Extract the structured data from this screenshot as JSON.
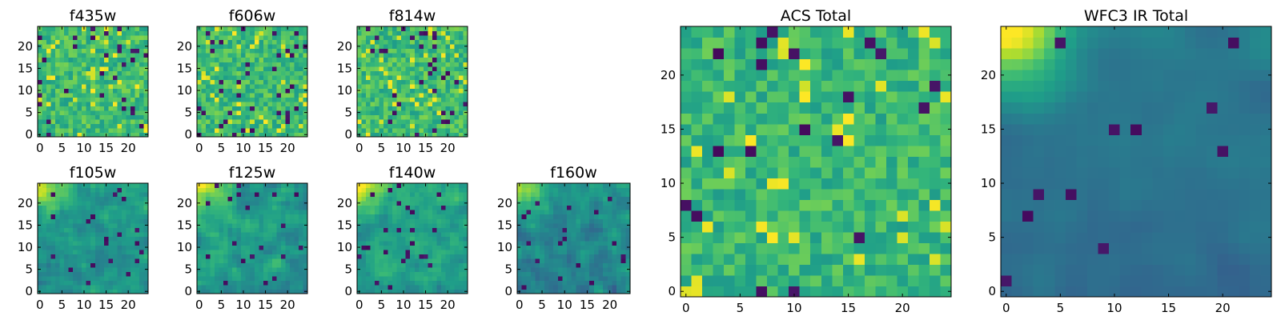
{
  "chart_data": [
    {
      "type": "heatmap",
      "title": "f435w",
      "grid_size": 25,
      "seed": 11,
      "smooth": 0,
      "gradient": 0.0,
      "base": 0.68,
      "spread": 0.13,
      "dark_fraction": 0.05,
      "bright_fraction": 0.06,
      "xticks": [
        0,
        5,
        10,
        15,
        20
      ],
      "yticks": [
        0,
        5,
        10,
        15,
        20
      ],
      "xlim": [
        -0.5,
        24.5
      ],
      "ylim": [
        -0.5,
        24.5
      ]
    },
    {
      "type": "heatmap",
      "title": "f606w",
      "grid_size": 25,
      "seed": 23,
      "smooth": 0,
      "gradient": 0.0,
      "base": 0.68,
      "spread": 0.13,
      "dark_fraction": 0.05,
      "bright_fraction": 0.06,
      "xticks": [
        0,
        5,
        10,
        15,
        20
      ],
      "yticks": [
        0,
        5,
        10,
        15,
        20
      ],
      "xlim": [
        -0.5,
        24.5
      ],
      "ylim": [
        -0.5,
        24.5
      ]
    },
    {
      "type": "heatmap",
      "title": "f814w",
      "grid_size": 25,
      "seed": 37,
      "smooth": 0,
      "gradient": 0.0,
      "base": 0.68,
      "spread": 0.13,
      "dark_fraction": 0.05,
      "bright_fraction": 0.06,
      "xticks": [
        0,
        5,
        10,
        15,
        20
      ],
      "yticks": [
        0,
        5,
        10,
        15,
        20
      ],
      "xlim": [
        -0.5,
        24.5
      ],
      "ylim": [
        -0.5,
        24.5
      ]
    },
    {
      "type": "heatmap",
      "title": "f105w",
      "grid_size": 25,
      "seed": 41,
      "smooth": 1,
      "gradient": 0.3,
      "base": 0.55,
      "spread": 0.11,
      "dark_fraction": 0.03,
      "bright_fraction": 0.0,
      "xticks": [
        0,
        5,
        10,
        15,
        20
      ],
      "yticks": [
        0,
        5,
        10,
        15,
        20
      ],
      "xlim": [
        -0.5,
        24.5
      ],
      "ylim": [
        -0.5,
        24.5
      ]
    },
    {
      "type": "heatmap",
      "title": "f125w",
      "grid_size": 25,
      "seed": 53,
      "smooth": 1,
      "gradient": 0.3,
      "base": 0.57,
      "spread": 0.12,
      "dark_fraction": 0.04,
      "bright_fraction": 0.0,
      "xticks": [
        0,
        5,
        10,
        15,
        20
      ],
      "yticks": [
        0,
        5,
        10,
        15,
        20
      ],
      "xlim": [
        -0.5,
        24.5
      ],
      "ylim": [
        -0.5,
        24.5
      ]
    },
    {
      "type": "heatmap",
      "title": "f140w",
      "grid_size": 25,
      "seed": 67,
      "smooth": 1,
      "gradient": 0.28,
      "base": 0.6,
      "spread": 0.11,
      "dark_fraction": 0.03,
      "bright_fraction": 0.0,
      "xticks": [
        0,
        5,
        10,
        15,
        20
      ],
      "yticks": [
        0,
        5,
        10,
        15,
        20
      ],
      "xlim": [
        -0.5,
        24.5
      ],
      "ylim": [
        -0.5,
        24.5
      ]
    },
    {
      "type": "heatmap",
      "title": "f160w",
      "grid_size": 25,
      "seed": 79,
      "smooth": 1,
      "gradient": 0.3,
      "base": 0.5,
      "spread": 0.12,
      "dark_fraction": 0.04,
      "bright_fraction": 0.0,
      "xticks": [
        0,
        5,
        10,
        15,
        20
      ],
      "yticks": [
        0,
        5,
        10,
        15,
        20
      ],
      "xlim": [
        -0.5,
        24.5
      ],
      "ylim": [
        -0.5,
        24.5
      ]
    },
    {
      "type": "heatmap",
      "title": "ACS Total",
      "grid_size": 25,
      "seed": 97,
      "smooth": 0,
      "gradient": 0.0,
      "base": 0.66,
      "spread": 0.12,
      "dark_fraction": 0.035,
      "bright_fraction": 0.05,
      "xticks": [
        0,
        5,
        10,
        15,
        20
      ],
      "yticks": [
        0,
        5,
        10,
        15,
        20
      ],
      "xlim": [
        -0.5,
        24.5
      ],
      "ylim": [
        -0.5,
        24.5
      ]
    },
    {
      "type": "heatmap",
      "title": "WFC3 IR Total",
      "grid_size": 25,
      "seed": 113,
      "smooth": 2,
      "gradient": 0.45,
      "base": 0.42,
      "spread": 0.07,
      "dark_fraction": 0.02,
      "bright_fraction": 0.0,
      "xticks": [
        0,
        5,
        10,
        15,
        20
      ],
      "yticks": [
        0,
        5,
        10,
        15,
        20
      ],
      "xlim": [
        -0.5,
        24.5
      ],
      "ylim": [
        -0.5,
        24.5
      ]
    }
  ],
  "colormap": [
    "#440154",
    "#482878",
    "#3e4989",
    "#31688e",
    "#26828e",
    "#1f9e89",
    "#35b779",
    "#6ece58",
    "#b5de2b",
    "#fde725"
  ]
}
